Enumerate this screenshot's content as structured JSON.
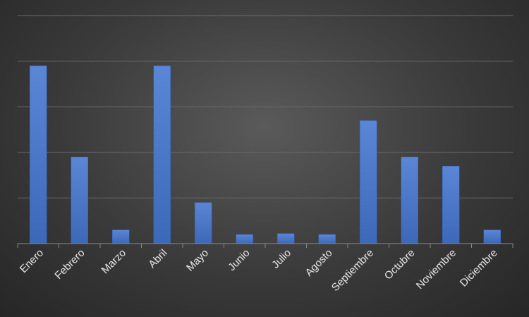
{
  "chart_data": {
    "type": "bar",
    "categories": [
      "Enero",
      "Febrero",
      "Marzo",
      "Abril",
      "Mayo",
      "Junio",
      "Julio",
      "Agosto",
      "Septiembre",
      "Octubre",
      "Noviembre",
      "Diciembre"
    ],
    "series": [
      {
        "values": [
          3.9,
          1.9,
          0.3,
          3.9,
          0.9,
          0.2,
          0.22,
          0.2,
          2.7,
          1.9,
          1.7,
          0.3
        ]
      }
    ],
    "ylim": [
      0,
      5
    ],
    "grid": true,
    "colors": {
      "bar": "#4472c4",
      "grid": "#6a6a6a",
      "axis": "#8a8a8a"
    }
  }
}
